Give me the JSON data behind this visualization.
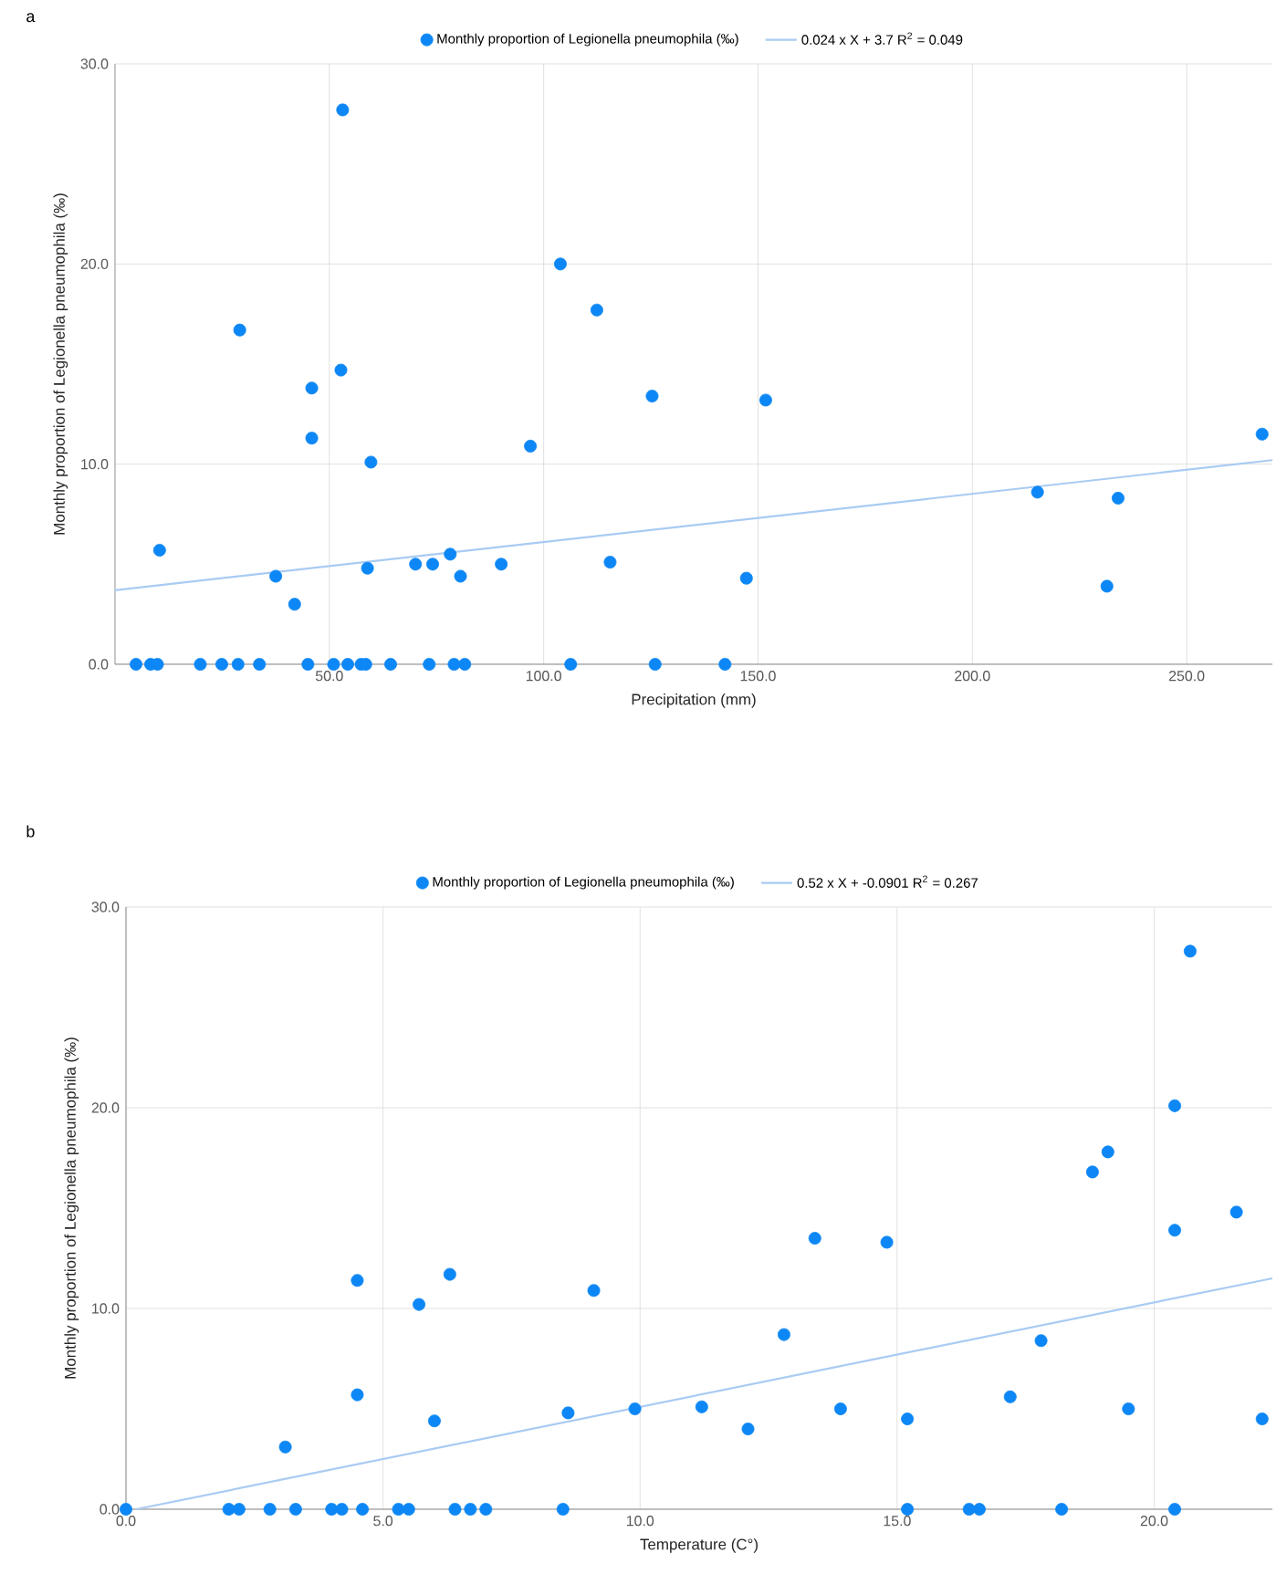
{
  "chart_data": [
    {
      "type": "scatter",
      "marker": "circle",
      "annotations": [
        "a"
      ],
      "xlabel": "Precipitation (mm)",
      "ylabel": "Monthly proportion of  Legionella pneumophila (‰)",
      "legend": "top",
      "grid": true,
      "xlim": [
        0,
        270
      ],
      "ylim": [
        0,
        30
      ],
      "xticks": [
        {
          "value": 50,
          "label": "50.0"
        },
        {
          "value": 100,
          "label": "100.0"
        },
        {
          "value": 150,
          "label": "150.0"
        },
        {
          "value": 200,
          "label": "200.0"
        },
        {
          "value": 250,
          "label": "250.0"
        }
      ],
      "yticks": [
        {
          "value": 0,
          "label": "0.0"
        },
        {
          "value": 10,
          "label": "10.0"
        },
        {
          "value": 20,
          "label": "20.0"
        },
        {
          "value": 30,
          "label": "30.0"
        }
      ],
      "series": [
        {
          "name": "Monthly proportion of  Legionella pneumophila (‰)",
          "type": "scatter",
          "color": "#0d87f5",
          "x": [
            53.1,
            103.9,
            112.4,
            29.1,
            52.7,
            45.9,
            125.3,
            45.9,
            96.9,
            59.7,
            10.4,
            37.5,
            41.9,
            58.9,
            70.1,
            74.1,
            78.2,
            80.6,
            90.1,
            115.5,
            151.8,
            267.6,
            215.2,
            234.0,
            147.3,
            231.4,
            4.9,
            8.3,
            9.9,
            19.9,
            24.9,
            28.7,
            33.7,
            45.0,
            51.0,
            54.3,
            57.4,
            58.5,
            64.3,
            73.3,
            79.1,
            81.6,
            106.3,
            126.0,
            142.3
          ],
          "values": [
            27.7,
            20.0,
            17.7,
            16.7,
            14.7,
            13.8,
            13.4,
            11.3,
            10.9,
            10.1,
            5.7,
            4.4,
            3.0,
            4.8,
            5.0,
            5.0,
            5.5,
            4.4,
            5.0,
            5.1,
            13.2,
            11.5,
            8.6,
            8.3,
            4.3,
            3.9,
            0,
            0,
            0,
            0,
            0,
            0,
            0,
            0,
            0,
            0,
            0,
            0,
            0,
            0,
            0,
            0,
            0,
            0,
            0
          ]
        },
        {
          "name": "0.024 x X + 3.7 R$^{2}$ = 0.049",
          "type": "line",
          "marker": "none",
          "color": "#a9cbf3",
          "x": [
            0,
            270
          ],
          "values": [
            3.7,
            10.2
          ]
        }
      ]
    },
    {
      "type": "scatter",
      "marker": "circle",
      "annotations": [
        "b"
      ],
      "xlabel": "Temperature (C°)",
      "ylabel": "Monthly proportion of  Legionella pneumophila (‰)",
      "legend": "top",
      "grid": true,
      "xlim": [
        0,
        22.3
      ],
      "ylim": [
        0,
        30
      ],
      "xticks": [
        {
          "value": 0,
          "label": "0.0"
        },
        {
          "value": 5,
          "label": "5.0"
        },
        {
          "value": 10,
          "label": "10.0"
        },
        {
          "value": 15,
          "label": "15.0"
        },
        {
          "value": 20,
          "label": "20.0"
        }
      ],
      "yticks": [
        {
          "value": 0,
          "label": "0.0"
        },
        {
          "value": 10,
          "label": "10.0"
        },
        {
          "value": 20,
          "label": "20.0"
        },
        {
          "value": 30,
          "label": "30.0"
        }
      ],
      "series": [
        {
          "name": "Monthly proportion of  Legionella pneumophila (‰)",
          "type": "scatter",
          "color": "#0d87f5",
          "x": [
            4.5,
            6.3,
            5.7,
            9.1,
            4.5,
            3.1,
            6.0,
            8.6,
            9.9,
            11.2,
            20.7,
            20.4,
            19.1,
            18.8,
            21.6,
            20.4,
            13.4,
            14.8,
            12.8,
            17.8,
            12.1,
            13.9,
            15.2,
            17.2,
            19.5,
            22.1,
            0.0,
            2.0,
            2.2,
            2.8,
            3.3,
            4.0,
            4.2,
            4.6,
            5.3,
            5.5,
            6.4,
            6.7,
            7.0,
            8.5,
            15.2,
            16.4,
            16.6,
            18.2,
            20.4
          ],
          "values": [
            11.4,
            11.7,
            10.2,
            10.9,
            5.7,
            3.1,
            4.4,
            4.8,
            5.0,
            5.1,
            27.8,
            20.1,
            17.8,
            16.8,
            14.8,
            13.9,
            13.5,
            13.3,
            8.7,
            8.4,
            4.0,
            5.0,
            4.5,
            5.6,
            5.0,
            4.5,
            0,
            0,
            0,
            0,
            0,
            0,
            0,
            0,
            0,
            0,
            0,
            0,
            0,
            0,
            0,
            0,
            0,
            0,
            0
          ]
        },
        {
          "name": "0.52 x X + -0.0901 R$^{2}$ = 0.267",
          "type": "line",
          "marker": "none",
          "color": "#a9cbf3",
          "x": [
            0.2,
            22.3
          ],
          "values": [
            0,
            11.5
          ]
        }
      ]
    }
  ]
}
